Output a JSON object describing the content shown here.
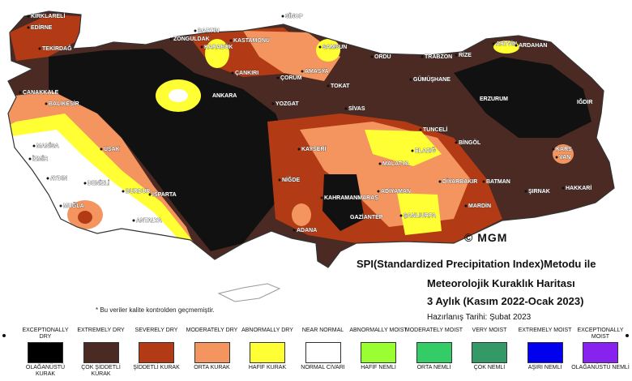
{
  "title": {
    "line1": "SPI(Standardized Precipitation Index)Metodu ile",
    "line2": "Meteorolojik Kuraklık Haritası",
    "line3": "3 Aylık (Kasım 2022-Ocak 2023)",
    "prepared": "Hazırlanış Tarihi: Şubat 2023"
  },
  "logo": "© MGM",
  "note": "* Bu veriler kalite kontrolden geçmemiştir.",
  "cities": [
    "KIRKLARELİ",
    "EDİRNE",
    "TEKİRDAĞ",
    "ÇANAKKALE",
    "BALIKESİR",
    "MANİSA",
    "İZMİR",
    "AYDIN",
    "MUĞLA",
    "DENİZLİ",
    "BURDUR",
    "ISPARTA",
    "ANTALYA",
    "UŞAK",
    "BARTIN",
    "ZONGULDAK",
    "KARABÜK",
    "KASTAMONU",
    "ÇANKIRI",
    "ANKARA",
    "SİNOP",
    "SAMSUN",
    "AMASYA",
    "ÇORUM",
    "YOZGAT",
    "TOKAT",
    "SİVAS",
    "ORDU",
    "TRABZON",
    "RİZE",
    "ARTVİN",
    "ARDAHAN",
    "GÜMÜŞHANE",
    "ERZURUM",
    "IĞDIR",
    "KARS",
    "BİNGÖL",
    "TUNCELİ",
    "ELAZIĞ",
    "MALATYA",
    "KAYSERİ",
    "DİYARBAKIR",
    "MARDİN",
    "BATMAN",
    "ŞIRNAK",
    "HAKKARİ",
    "VAN",
    "ADIYAMAN",
    "ŞANLIURFA",
    "GAZİANTEP",
    "KAHRAMANMARAŞ",
    "ADANA",
    "NİĞDE"
  ],
  "legend": [
    {
      "en": "EXCEPTIONALLY DRY",
      "tr": "OLAĞANÜSTÜ KURAK",
      "color": "#000000"
    },
    {
      "en": "EXTREMELY DRY",
      "tr": "ÇOK ŞİDDETLİ KURAK",
      "color": "#4a2a22"
    },
    {
      "en": "SEVERELY DRY",
      "tr": "ŞİDDETLİ KURAK",
      "color": "#b23a14"
    },
    {
      "en": "MODERATELY DRY",
      "tr": "ORTA KURAK",
      "color": "#f4955f"
    },
    {
      "en": "ABNORMALLY DRY",
      "tr": "HAFİF KURAK",
      "color": "#ffff33"
    },
    {
      "en": "NEAR NORMAL",
      "tr": "NORMAL CİVARI",
      "color": "#ffffff"
    },
    {
      "en": "ABNORMALLY MOIST",
      "tr": "HAFİF NEMLİ",
      "color": "#99ff33"
    },
    {
      "en": "MODERATELY MOIST",
      "tr": "ORTA NEMLİ",
      "color": "#33cc66"
    },
    {
      "en": "VERY MOIST",
      "tr": "ÇOK NEMLİ",
      "color": "#339966"
    },
    {
      "en": "EXTREMELY MOIST",
      "tr": "AŞIRI NEMLİ",
      "color": "#0000ee"
    },
    {
      "en": "EXCEPTIONALLY MOIST",
      "tr": "OLAĞANÜSTÜ NEMLİ",
      "color": "#8822ee"
    }
  ],
  "colors": {
    "exceptional": "#111111",
    "extreme": "#4a2a22",
    "severe": "#b23a14",
    "moderate": "#f4955f",
    "abnormal": "#ffff33",
    "normal": "#ffffff"
  }
}
